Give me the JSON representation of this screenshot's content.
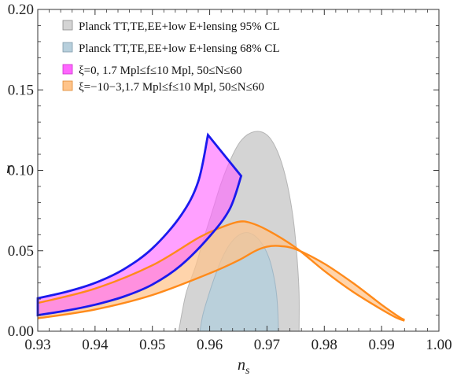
{
  "chart_data": {
    "type": "area",
    "xlabel": "n",
    "xlabel_sub": "s",
    "ylabel": "r",
    "xlim": [
      0.93,
      1.0
    ],
    "ylim": [
      0.0,
      0.2
    ],
    "xticks": [
      "0.93",
      "0.94",
      "0.95",
      "0.96",
      "0.97",
      "0.98",
      "0.99",
      "1.00"
    ],
    "yticks": [
      "0.00",
      "0.05",
      "0.10",
      "0.15",
      "0.20"
    ],
    "legend_position": "top-right",
    "colors": {
      "planck95": "#d4d4d4",
      "planck68": "#b7cfdc",
      "xi0_fill": "#ff66ff",
      "xi0_line": "#1a1aee",
      "xi_neg_fill": "#ffc48a",
      "xi_neg_line": "#ff8a1a"
    },
    "legend": [
      {
        "key": "planck95",
        "label": "Planck TT,TE,EE+low E+lensing 95% CL"
      },
      {
        "key": "planck68",
        "label": "Planck TT,TE,EE+low E+lensing 68% CL"
      },
      {
        "key": "xi0",
        "label": "ξ=0, 1.7 Mpl≤f≤10 Mpl, 50≤N≤60"
      },
      {
        "key": "xi_neg",
        "label": "ξ=−10−3,1.7 Mpl≤f≤10 Mpl, 50≤N≤60"
      }
    ],
    "series": [
      {
        "name": "Planck TT,TE,EE+low E+lensing 95% CL",
        "kind": "region",
        "points": [
          [
            0.9546,
            0.0
          ],
          [
            0.9552,
            0.012
          ],
          [
            0.956,
            0.025
          ],
          [
            0.9575,
            0.04
          ],
          [
            0.959,
            0.058
          ],
          [
            0.9605,
            0.075
          ],
          [
            0.962,
            0.092
          ],
          [
            0.9638,
            0.108
          ],
          [
            0.9656,
            0.119
          ],
          [
            0.9678,
            0.124
          ],
          [
            0.97,
            0.122
          ],
          [
            0.9718,
            0.112
          ],
          [
            0.9733,
            0.095
          ],
          [
            0.9745,
            0.072
          ],
          [
            0.9752,
            0.048
          ],
          [
            0.9756,
            0.024
          ],
          [
            0.9756,
            0.0
          ]
        ]
      },
      {
        "name": "Planck TT,TE,EE+low E+lensing 68% CL",
        "kind": "region",
        "points": [
          [
            0.9583,
            0.0
          ],
          [
            0.9588,
            0.01
          ],
          [
            0.9596,
            0.02
          ],
          [
            0.9607,
            0.032
          ],
          [
            0.962,
            0.044
          ],
          [
            0.9635,
            0.054
          ],
          [
            0.9652,
            0.06
          ],
          [
            0.967,
            0.061
          ],
          [
            0.9688,
            0.056
          ],
          [
            0.9703,
            0.046
          ],
          [
            0.9713,
            0.032
          ],
          [
            0.9718,
            0.018
          ],
          [
            0.972,
            0.0
          ]
        ]
      },
      {
        "name": "ξ=0, 1.7 Mpl≤f≤10 Mpl, 50≤N≤60",
        "kind": "band",
        "upper": [
          [
            0.93,
            0.0205
          ],
          [
            0.935,
            0.0245
          ],
          [
            0.94,
            0.03
          ],
          [
            0.945,
            0.0385
          ],
          [
            0.95,
            0.0515
          ],
          [
            0.955,
            0.072
          ],
          [
            0.958,
            0.093
          ],
          [
            0.9597,
            0.122
          ]
        ],
        "lower": [
          [
            0.93,
            0.01
          ],
          [
            0.935,
            0.0128
          ],
          [
            0.94,
            0.0165
          ],
          [
            0.945,
            0.0215
          ],
          [
            0.95,
            0.029
          ],
          [
            0.955,
            0.041
          ],
          [
            0.96,
            0.059
          ],
          [
            0.9635,
            0.076
          ],
          [
            0.9655,
            0.0965
          ]
        ]
      },
      {
        "name": "ξ=−10−3,1.7 Mpl≤f≤10 Mpl, 50≤N≤60",
        "kind": "band",
        "upper": [
          [
            0.93,
            0.0175
          ],
          [
            0.94,
            0.0265
          ],
          [
            0.95,
            0.041
          ],
          [
            0.958,
            0.058
          ],
          [
            0.962,
            0.0645
          ],
          [
            0.965,
            0.068
          ],
          [
            0.967,
            0.0675
          ],
          [
            0.97,
            0.063
          ],
          [
            0.975,
            0.052
          ],
          [
            0.98,
            0.0375
          ],
          [
            0.985,
            0.0245
          ],
          [
            0.99,
            0.0135
          ],
          [
            0.9925,
            0.0085
          ],
          [
            0.994,
            0.0065
          ]
        ],
        "lower": [
          [
            0.93,
            0.008
          ],
          [
            0.94,
            0.0135
          ],
          [
            0.95,
            0.0225
          ],
          [
            0.96,
            0.036
          ],
          [
            0.965,
            0.044
          ],
          [
            0.968,
            0.05
          ],
          [
            0.97,
            0.0525
          ],
          [
            0.972,
            0.053
          ],
          [
            0.975,
            0.051
          ],
          [
            0.98,
            0.042
          ],
          [
            0.985,
            0.03
          ],
          [
            0.99,
            0.0165
          ],
          [
            0.993,
            0.009
          ],
          [
            0.994,
            0.007
          ]
        ]
      }
    ]
  }
}
